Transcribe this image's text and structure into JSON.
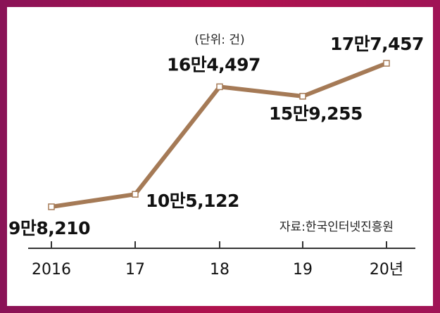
{
  "chart_data": {
    "type": "line",
    "title": "",
    "unit_note": "(단위: 건)",
    "source": "자료:한국인터넷진흥원",
    "categories": [
      "2016",
      "17",
      "18",
      "19",
      "20년"
    ],
    "series": [
      {
        "values": [
          98210,
          105122,
          164497,
          159255,
          177457
        ],
        "labels": [
          "9만8,210",
          "10만5,122",
          "16만4,497",
          "15만9,255",
          "17만7,457"
        ]
      }
    ],
    "line_color": "#a57a56",
    "marker_color": "#ffffff",
    "axis_color": "#333333",
    "grid": false
  }
}
